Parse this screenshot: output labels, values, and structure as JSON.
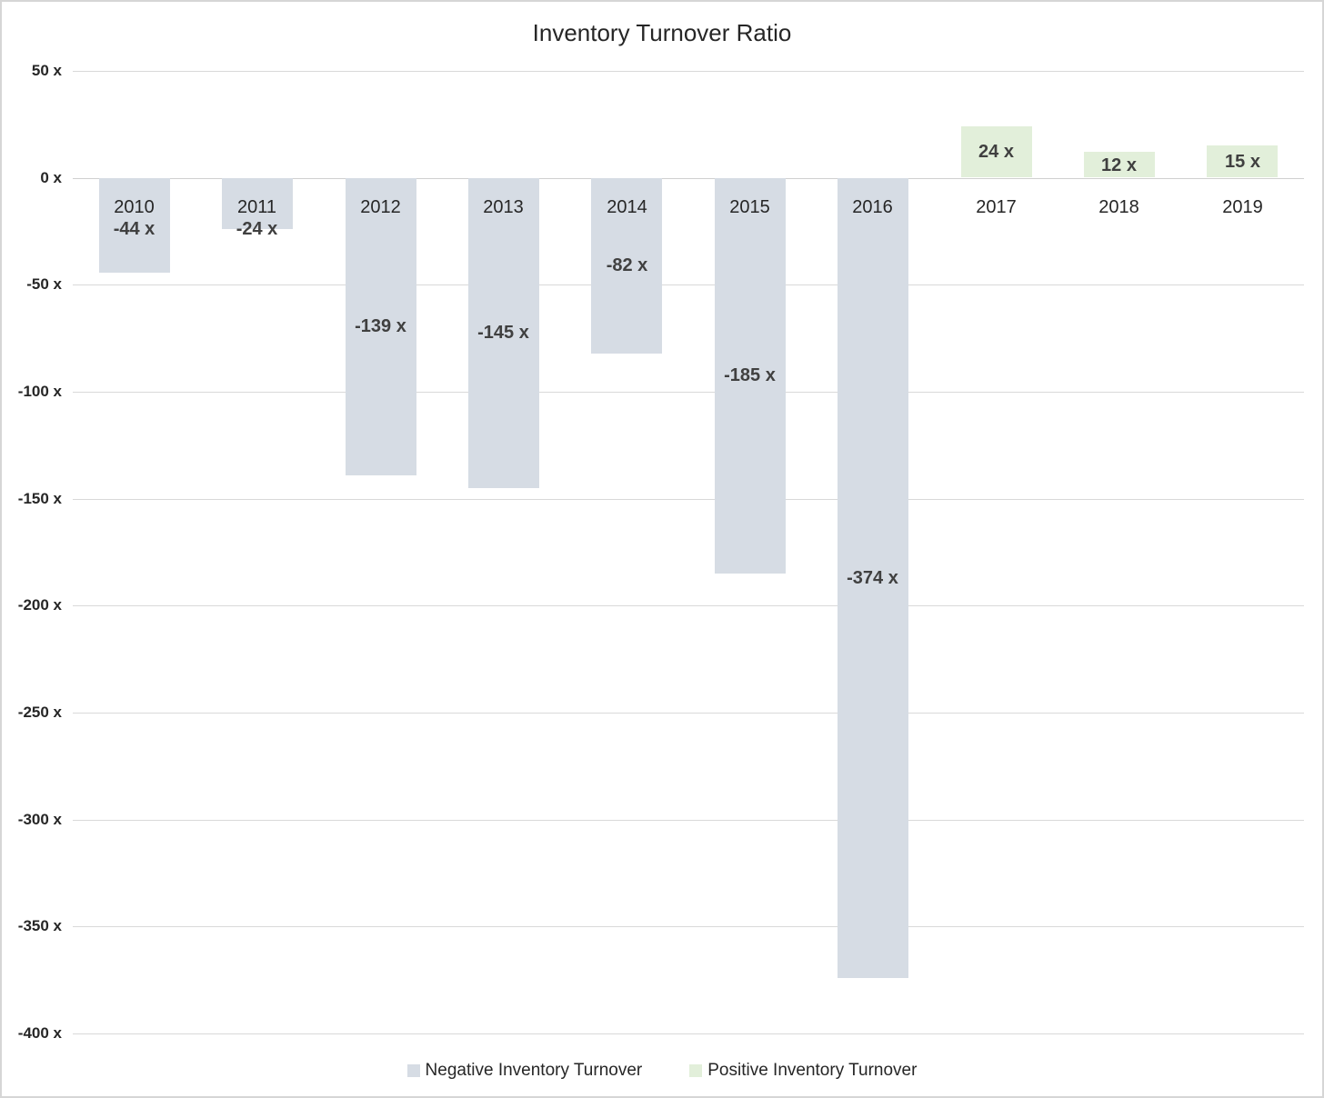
{
  "chart_data": {
    "type": "bar",
    "title": "Inventory Turnover Ratio",
    "categories": [
      "2010",
      "2011",
      "2012",
      "2013",
      "2014",
      "2015",
      "2016",
      "2017",
      "2018",
      "2019"
    ],
    "values": [
      -44,
      -24,
      -139,
      -145,
      -82,
      -185,
      -374,
      24,
      12,
      15
    ],
    "bar_labels": [
      "-44 x",
      "-24 x",
      "-139 x",
      "-145 x",
      "-82 x",
      "-185 x",
      "-374 x",
      "24 x",
      "12 x",
      "15 x"
    ],
    "unit_suffix": " x",
    "ylim": [
      -400,
      50
    ],
    "ytick_step": 50,
    "ytick_labels": [
      "50 x",
      "0 x",
      "-50 x",
      "-100 x",
      "-150 x",
      "-200 x",
      "-250 x",
      "-300 x",
      "-350 x",
      "-400 x"
    ],
    "grid": true,
    "legend_position": "bottom",
    "legend": [
      {
        "label": "Negative Inventory Turnover",
        "color": "#d6dce4"
      },
      {
        "label": "Positive Inventory Turnover",
        "color": "#e2efda"
      }
    ],
    "colors": {
      "negative_bar": "#d6dce4",
      "positive_bar": "#e2efda",
      "gridline": "#d9d9d9",
      "value_label_text": "#404040",
      "axis_text": "#262626"
    }
  }
}
